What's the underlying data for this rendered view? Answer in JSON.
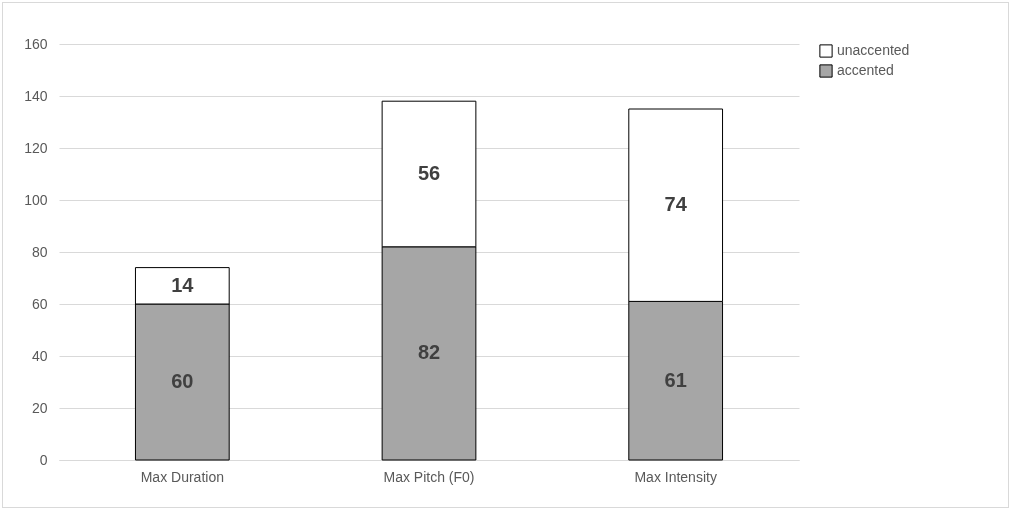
{
  "chart_data": {
    "type": "bar",
    "stacked": true,
    "categories": [
      "Max Duration",
      "Max Pitch (F0)",
      "Max Intensity"
    ],
    "series": [
      {
        "name": "accented",
        "color": "#a6a6a6",
        "values": [
          60,
          82,
          61
        ]
      },
      {
        "name": "unaccented",
        "color": "#ffffff",
        "values": [
          14,
          56,
          74
        ]
      }
    ],
    "ylim": [
      0,
      160
    ],
    "yticks": [
      0,
      20,
      40,
      60,
      80,
      100,
      120,
      140,
      160
    ],
    "grid": "y",
    "legend": "right",
    "data_labels": true
  }
}
